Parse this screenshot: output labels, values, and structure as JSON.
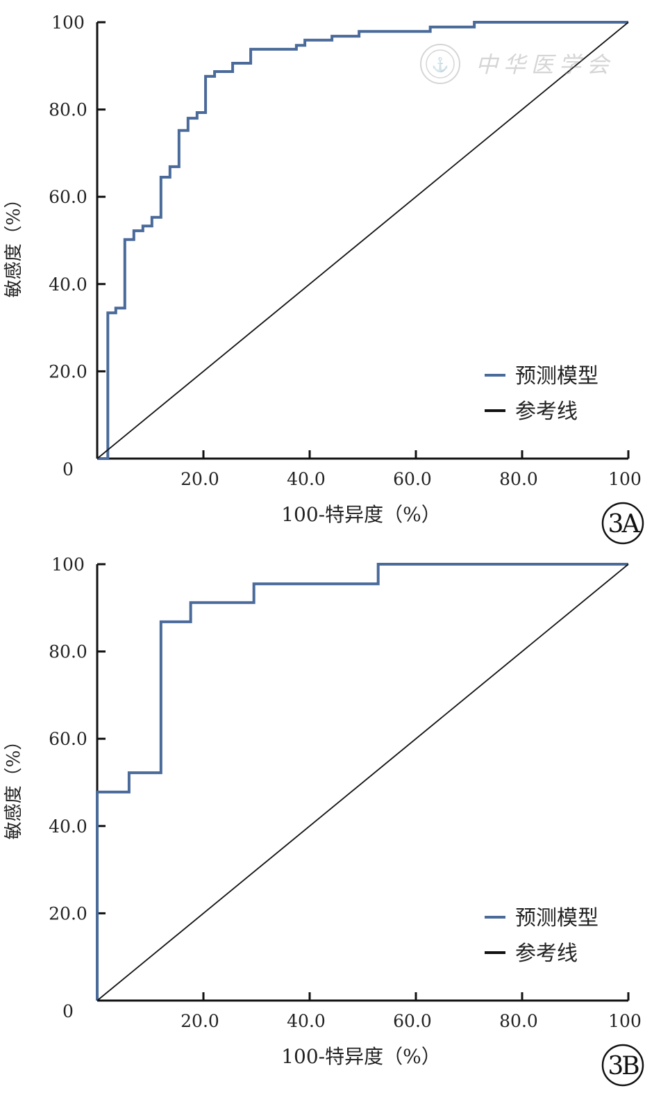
{
  "chart_data": [
    {
      "type": "line",
      "panel_label": "3A",
      "xlabel": "100-特异度（%）",
      "ylabel": "敏感度（%）",
      "xlim": [
        0,
        100
      ],
      "ylim": [
        0,
        100
      ],
      "xticks": [
        "20.0",
        "40.0",
        "60.0",
        "80.0",
        "100"
      ],
      "yticks": [
        "0",
        "20.0",
        "40.0",
        "60.0",
        "80.0",
        "100"
      ],
      "grid": false,
      "legend_placement": "bottom-right",
      "watermark": "中华医学会",
      "series": [
        {
          "name": "预测模型",
          "color": "#4a6a9a",
          "step": true,
          "x": [
            0,
            2.0,
            3.5,
            5.2,
            6.9,
            8.6,
            10.3,
            12.0,
            13.7,
            15.4,
            17.1,
            18.8,
            20.4,
            22.1,
            25.5,
            28.9,
            37.5,
            39.1,
            44.2,
            49.3,
            62.7,
            71.0,
            100
          ],
          "y": [
            0,
            33.4,
            34.5,
            50.2,
            52.2,
            53.3,
            55.3,
            64.5,
            66.9,
            75.2,
            78.0,
            79.3,
            87.6,
            88.7,
            90.6,
            93.8,
            94.7,
            95.9,
            96.8,
            97.9,
            98.9,
            100,
            100
          ]
        },
        {
          "name": "参考线",
          "color": "#111111",
          "step": false,
          "x": [
            0,
            100
          ],
          "y": [
            0,
            100
          ]
        }
      ]
    },
    {
      "type": "line",
      "panel_label": "3B",
      "xlabel": "100-特异度（%）",
      "ylabel": "敏感度（%）",
      "xlim": [
        0,
        100
      ],
      "ylim": [
        0,
        100
      ],
      "xticks": [
        "20.0",
        "40.0",
        "60.0",
        "80.0",
        "100"
      ],
      "yticks": [
        "0",
        "20.0",
        "40.0",
        "60.0",
        "80.0",
        "100"
      ],
      "grid": false,
      "legend_placement": "bottom-right",
      "series": [
        {
          "name": "预测模型",
          "color": "#4a6a9a",
          "step": true,
          "x": [
            0,
            0,
            6.0,
            12.0,
            17.6,
            29.5,
            52.9,
            100
          ],
          "y": [
            0,
            47.8,
            52.2,
            86.8,
            91.2,
            95.5,
            100,
            100
          ]
        },
        {
          "name": "参考线",
          "color": "#111111",
          "step": false,
          "x": [
            0,
            100
          ],
          "y": [
            0,
            100
          ]
        }
      ]
    }
  ]
}
